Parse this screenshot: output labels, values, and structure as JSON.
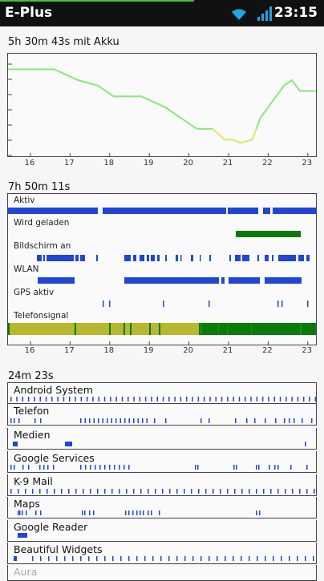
{
  "status_bar": {
    "carrier": "E-Plus",
    "time": "23:15",
    "wifi_icon": "wifi-icon",
    "signal_icon": "signal-bars-icon"
  },
  "battery_section": {
    "title": "5h 30m 43s mit Akku"
  },
  "activity_section": {
    "title": "7h 50m 11s",
    "rows": [
      "Aktiv",
      "Wird geladen",
      "Bildschirm an",
      "WLAN",
      "GPS aktiv",
      "Telefonsignal"
    ]
  },
  "apps_section": {
    "title": "24m 23s",
    "apps": [
      "Android System",
      "Telefon",
      "Medien",
      "Google Services",
      "K-9 Mail",
      "Maps",
      "Google Reader",
      "Beautiful Widgets",
      "Aura"
    ]
  },
  "axis_hours": [
    "16",
    "17",
    "18",
    "19",
    "20",
    "21",
    "22",
    "23"
  ],
  "chart_data": {
    "type": "line",
    "title": "5h 30m 43s mit Akku",
    "x": [
      15.4,
      16.6,
      17.2,
      17.7,
      18.1,
      18.8,
      19.4,
      19.8,
      20.2,
      20.6,
      20.9,
      21.1,
      21.3,
      21.6,
      21.7,
      21.8,
      22.0,
      22.2,
      22.4,
      22.6,
      22.8,
      23.2
    ],
    "y": [
      7,
      7,
      6,
      5.5,
      4.5,
      4.5,
      3.5,
      2.5,
      1.5,
      1.5,
      0.5,
      0.5,
      0.2,
      0.5,
      1.5,
      2.5,
      3.5,
      4.5,
      5.5,
      6,
      5,
      5
    ],
    "xlim": [
      15.4,
      23.25
    ],
    "ylim": [
      0,
      8
    ],
    "grid": false,
    "colors": {
      "normal": "#88e878",
      "charging_low": "#e8e86a"
    }
  },
  "colors": {
    "blue": "#1f46d6",
    "green": "#0a7a0a",
    "olive": "#b8b830"
  }
}
